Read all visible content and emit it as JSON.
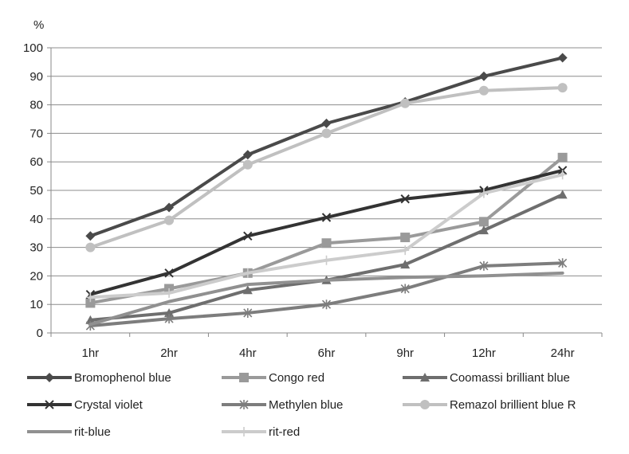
{
  "chart_data": {
    "type": "line",
    "y_unit": "%",
    "categories": [
      "1hr",
      "2hr",
      "4hr",
      "6hr",
      "9hr",
      "12hr",
      "24hr"
    ],
    "ylim": [
      0,
      100
    ],
    "yticks": [
      0,
      10,
      20,
      30,
      40,
      50,
      60,
      70,
      80,
      90,
      100
    ],
    "grid": "horizontal",
    "legend_position": "bottom",
    "series": [
      {
        "name": "Bromophenol blue",
        "marker": "diamond",
        "color": "#4a4a4a",
        "values": [
          34,
          44,
          62.5,
          73.5,
          81,
          90,
          96.5
        ]
      },
      {
        "name": "Congo red",
        "marker": "square",
        "color": "#9a9a9a",
        "values": [
          10.5,
          15.5,
          21,
          31.5,
          33.5,
          39,
          61.5
        ]
      },
      {
        "name": "Coomassi brilliant blue",
        "marker": "triangle",
        "color": "#6e6e6e",
        "values": [
          4.5,
          7,
          15,
          18.5,
          24,
          36,
          48.5
        ]
      },
      {
        "name": "Crystal violet",
        "marker": "x",
        "color": "#333333",
        "values": [
          13.5,
          21,
          34,
          40.5,
          47,
          50,
          57
        ]
      },
      {
        "name": "Methylen blue",
        "marker": "asterisk",
        "color": "#7d7d7d",
        "values": [
          2.5,
          5,
          7,
          10,
          15.5,
          23.5,
          24.5
        ]
      },
      {
        "name": "Remazol brillient blue R",
        "marker": "circle",
        "color": "#c0c0c0",
        "values": [
          30,
          39.5,
          59,
          70,
          80.5,
          85,
          86
        ]
      },
      {
        "name": "rit-blue",
        "marker": "none",
        "color": "#909090",
        "values": [
          3,
          11,
          17,
          18.5,
          19.5,
          20,
          21
        ]
      },
      {
        "name": "rit-red",
        "marker": "plus",
        "color": "#cccccc",
        "values": [
          12.5,
          14,
          21,
          25.5,
          29,
          49,
          55.5
        ]
      }
    ]
  }
}
